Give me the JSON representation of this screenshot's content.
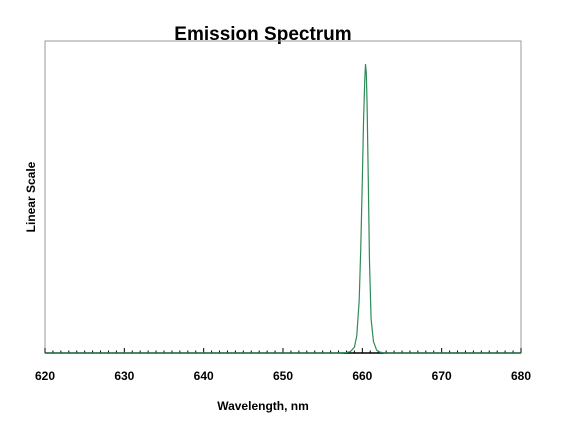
{
  "chart_data": {
    "type": "line",
    "title": "Emission Spectrum",
    "xlabel": "Wavelength, nm",
    "ylabel": "Linear Scale",
    "xlim": [
      620,
      680
    ],
    "ylim": [
      0,
      1.08
    ],
    "xticks": [
      "620",
      "630",
      "640",
      "650",
      "660",
      "670",
      "680"
    ],
    "grid": false,
    "line_color": "#2e8b57",
    "series": [
      {
        "x": [
          620,
          650,
          657,
          658,
          658.5,
          659,
          659.3,
          659.6,
          659.8,
          660.0,
          660.15,
          660.3,
          660.4,
          660.5,
          660.6,
          660.75,
          660.9,
          661.1,
          661.4,
          661.8,
          662.2,
          663,
          670,
          680
        ],
        "y": [
          0,
          0,
          0,
          0.002,
          0.005,
          0.02,
          0.06,
          0.18,
          0.36,
          0.6,
          0.8,
          0.94,
          1.0,
          0.97,
          0.86,
          0.6,
          0.32,
          0.12,
          0.04,
          0.01,
          0.003,
          0,
          0,
          0
        ]
      }
    ]
  }
}
